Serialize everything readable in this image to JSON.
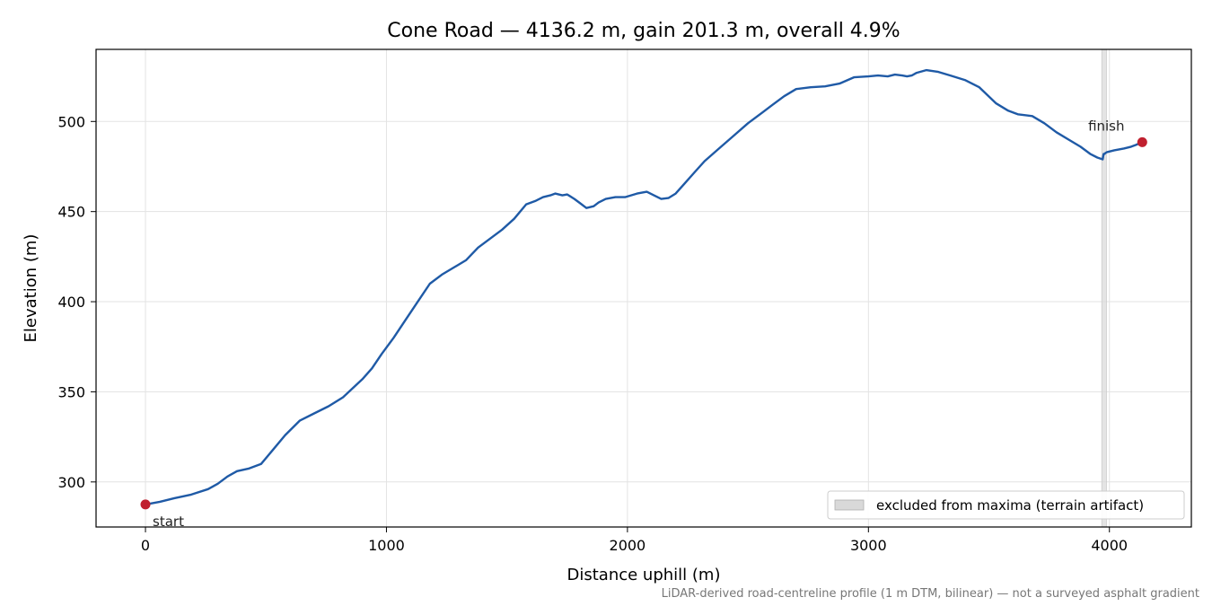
{
  "chart_data": {
    "type": "line",
    "title": "Cone Road — 4136.2 m, gain 201.3 m, overall 4.9%",
    "xlabel": "Distance uphill (m)",
    "ylabel": "Elevation (m)",
    "xlim": [
      -205,
      4340
    ],
    "ylim": [
      275,
      540
    ],
    "xticks": [
      0,
      1000,
      2000,
      3000,
      4000
    ],
    "yticks": [
      300,
      350,
      400,
      450,
      500
    ],
    "grid": true,
    "line_color": "#1f5aa6",
    "marker_color": "#c0202f",
    "series": [
      {
        "x": [
          0,
          60,
          120,
          190,
          260,
          300,
          340,
          380,
          430,
          480,
          530,
          580,
          640,
          700,
          760,
          820,
          860,
          900,
          940,
          980,
          1030,
          1080,
          1130,
          1180,
          1230,
          1280,
          1330,
          1380,
          1430,
          1480,
          1530,
          1580,
          1620,
          1650,
          1680,
          1700,
          1730,
          1750,
          1780,
          1800,
          1830,
          1860,
          1880,
          1910,
          1950,
          1990,
          2040,
          2080,
          2110,
          2140,
          2170,
          2200,
          2240,
          2280,
          2320,
          2380,
          2440,
          2500,
          2560,
          2600,
          2650,
          2700,
          2760,
          2820,
          2880,
          2940,
          3000,
          3040,
          3080,
          3110,
          3140,
          3160,
          3180,
          3200,
          3240,
          3290,
          3340,
          3400,
          3460,
          3530,
          3580,
          3620,
          3680,
          3730,
          3780,
          3830,
          3880,
          3920,
          3950,
          3972,
          3976,
          3980,
          3984,
          3990,
          4020,
          4060,
          4090,
          4110,
          4136
        ],
        "y": [
          287.5,
          289,
          291,
          293,
          296,
          299,
          303,
          306,
          307.5,
          310,
          318,
          326,
          334,
          338,
          342,
          347,
          352,
          357,
          363,
          371,
          380,
          390,
          400,
          410,
          415,
          419,
          423,
          430,
          435,
          440,
          446,
          454,
          456,
          458,
          459,
          460,
          459,
          459.5,
          457,
          455,
          452,
          453,
          455,
          457,
          458,
          458,
          460,
          461,
          459,
          457,
          457.5,
          460,
          466,
          472,
          478,
          485,
          492,
          499,
          505,
          509,
          514,
          518,
          519,
          519.5,
          521,
          524.5,
          525,
          525.5,
          525,
          526,
          525.5,
          525,
          525.5,
          527,
          528.5,
          527.5,
          525.5,
          523,
          519,
          510,
          506,
          504,
          503,
          499,
          494,
          490,
          486,
          482,
          480,
          479,
          482,
          482,
          482.5,
          483,
          484,
          485,
          486,
          487,
          488.5
        ]
      }
    ],
    "points": [
      {
        "label": "start",
        "x": 0,
        "y": 287.5
      },
      {
        "label": "finish",
        "x": 4136.2,
        "y": 488.5
      }
    ],
    "excluded_region": {
      "x": [
        3968,
        3988
      ],
      "legend": "excluded from maxima (terrain artifact)"
    },
    "legend_position": "lower-right",
    "footnote": "LiDAR-derived road-centreline profile (1 m DTM, bilinear) — not a surveyed asphalt gradient"
  }
}
